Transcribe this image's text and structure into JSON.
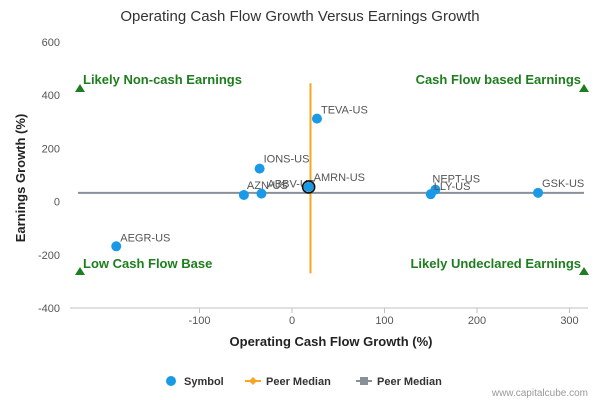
{
  "chart_data": {
    "type": "scatter",
    "title": "Operating Cash Flow Growth Versus Earnings Growth",
    "xlabel": "Operating Cash Flow Growth (%)",
    "ylabel": "Earnings Growth (%)",
    "xlim": [
      -240,
      320
    ],
    "ylim": [
      -400,
      600
    ],
    "x_ticks": [
      -100,
      0,
      100,
      200,
      300
    ],
    "y_ticks": [
      -400,
      -200,
      0,
      200,
      400,
      600
    ],
    "grid": false,
    "points": [
      {
        "symbol": "TEVA-US",
        "x": 27,
        "y": 312
      },
      {
        "symbol": "IONS-US",
        "x": -35,
        "y": 124
      },
      {
        "symbol": "AZN-US",
        "x": -52,
        "y": 25
      },
      {
        "symbol": "ABBV-US",
        "x": -33,
        "y": 30
      },
      {
        "symbol": "AMRN-US",
        "x": 18,
        "y": 55,
        "highlighted": true
      },
      {
        "symbol": "NEPT-US",
        "x": 155,
        "y": 45
      },
      {
        "symbol": "LLY-US",
        "x": 150,
        "y": 28
      },
      {
        "symbol": "GSK-US",
        "x": 266,
        "y": 33
      },
      {
        "symbol": "AEGR-US",
        "x": -190,
        "y": -168
      }
    ],
    "peer_median_x": 20,
    "peer_median_y": 33,
    "quadrant_labels": {
      "top_left": "Likely Non-cash Earnings",
      "top_right": "Cash Flow based Earnings",
      "bottom_left": "Low Cash Flow Base",
      "bottom_right": "Likely Undeclared Earnings"
    },
    "legend": [
      {
        "name": "Symbol",
        "color": "#1a9ae6"
      },
      {
        "name": "Peer Median",
        "color": "#f5a623"
      },
      {
        "name": "Peer Median",
        "color": "#8a9099"
      }
    ]
  },
  "credit": "www.capitalcube.com",
  "colors": {
    "point": "#1a9ae6",
    "median_vertical": "#f5a623",
    "median_horizontal": "#8a9099",
    "quadrant_text": "#1e7d1e"
  }
}
